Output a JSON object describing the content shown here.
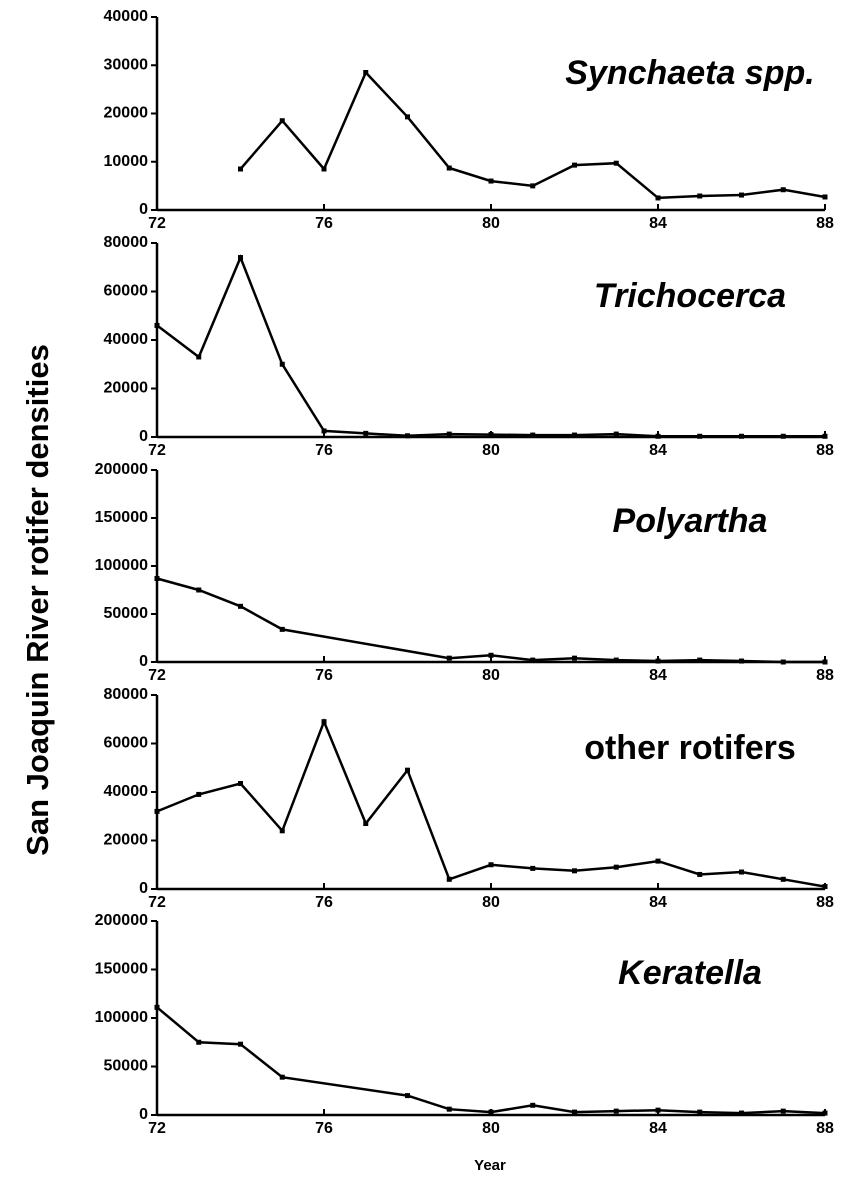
{
  "ylabel": "San Joaquin River rotifer densities",
  "xlabel": "Year",
  "chart_data": [
    {
      "type": "line",
      "title": "Synchaeta spp.",
      "italic": true,
      "color": "#000000",
      "x": [
        74,
        75,
        76,
        77,
        78,
        79,
        80,
        81,
        82,
        83,
        84,
        85,
        86,
        87,
        88
      ],
      "values": [
        8500,
        18500,
        8500,
        28500,
        19300,
        8700,
        6000,
        5000,
        9300,
        9700,
        2500,
        2900,
        3100,
        4200,
        2700
      ],
      "xlim": [
        72,
        88
      ],
      "xticks": [
        72,
        76,
        80,
        84,
        88
      ],
      "ylim": [
        0,
        40000
      ],
      "yticks": [
        0,
        10000,
        20000,
        30000,
        40000
      ]
    },
    {
      "type": "line",
      "title": "Trichocerca",
      "italic": true,
      "color": "#000000",
      "x": [
        72,
        73,
        74,
        75,
        76,
        77,
        78,
        79,
        80,
        81,
        82,
        83,
        84,
        85,
        86,
        87,
        88
      ],
      "values": [
        46000,
        33000,
        74000,
        30000,
        2500,
        1500,
        500,
        1200,
        1000,
        800,
        800,
        1200,
        300,
        300,
        300,
        300,
        300
      ],
      "xlim": [
        72,
        88
      ],
      "xticks": [
        72,
        76,
        80,
        84,
        88
      ],
      "ylim": [
        0,
        80000
      ],
      "yticks": [
        0,
        20000,
        40000,
        60000,
        80000
      ]
    },
    {
      "type": "line",
      "title": "Polyartha",
      "italic": true,
      "color": "#000000",
      "x": [
        72,
        73,
        74,
        75,
        79,
        80,
        81,
        82,
        83,
        84,
        85,
        86,
        87,
        88
      ],
      "values": [
        87000,
        75000,
        58000,
        34000,
        4000,
        7000,
        2000,
        4000,
        2000,
        1000,
        2000,
        1000,
        0,
        0
      ],
      "xlim": [
        72,
        88
      ],
      "xticks": [
        72,
        76,
        80,
        84,
        88
      ],
      "ylim": [
        0,
        200000
      ],
      "yticks": [
        0,
        50000,
        100000,
        150000,
        200000
      ]
    },
    {
      "type": "line",
      "title": "other rotifers",
      "italic": false,
      "color": "#000000",
      "x": [
        72,
        73,
        74,
        75,
        76,
        77,
        78,
        79,
        80,
        81,
        82,
        83,
        84,
        85,
        86,
        87,
        88
      ],
      "values": [
        32000,
        39000,
        43500,
        24000,
        69000,
        27000,
        49000,
        4000,
        10000,
        8500,
        7500,
        9000,
        11500,
        6000,
        7000,
        4000,
        1000
      ],
      "xlim": [
        72,
        88
      ],
      "xticks": [
        72,
        76,
        80,
        84,
        88
      ],
      "ylim": [
        0,
        80000
      ],
      "yticks": [
        0,
        20000,
        40000,
        60000,
        80000
      ]
    },
    {
      "type": "line",
      "title": "Keratella",
      "italic": true,
      "color": "#000000",
      "x": [
        72,
        73,
        74,
        75,
        78,
        79,
        80,
        81,
        82,
        83,
        84,
        85,
        86,
        87,
        88
      ],
      "values": [
        111000,
        75000,
        73000,
        39000,
        20000,
        6000,
        3000,
        10000,
        3000,
        4000,
        5000,
        3000,
        2000,
        4000,
        2000
      ],
      "xlim": [
        72,
        88
      ],
      "xticks": [
        72,
        76,
        80,
        84,
        88
      ],
      "ylim": [
        0,
        200000
      ],
      "yticks": [
        0,
        50000,
        100000,
        150000,
        200000
      ]
    }
  ]
}
